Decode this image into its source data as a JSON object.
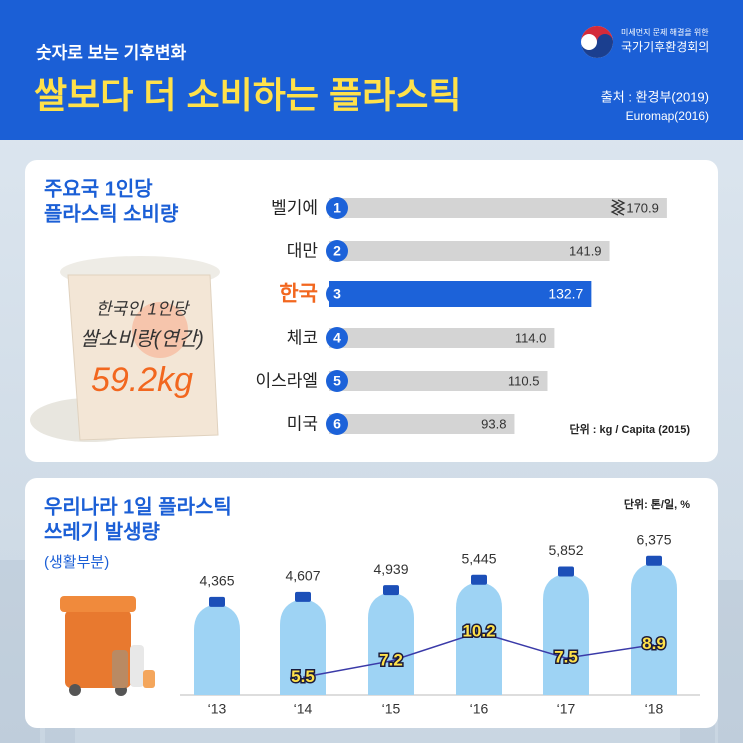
{
  "header": {
    "kicker": "숫자로 보는 기후변화",
    "title": "쌀보다 더 소비하는 플라스틱",
    "org_line1": "미세먼지 문제 해결을 위한",
    "org_line2": "국가기후환경회의",
    "source_line1": "출처 : 환경부(2019)",
    "source_line2": "Euromap(2016)"
  },
  "chart_data": [
    {
      "type": "hbar",
      "title": [
        "주요국 1인당",
        "플라스틱 소비량"
      ],
      "unit": "단위 : kg / Capita (2015)",
      "categories": [
        "벨기에",
        "대만",
        "한국",
        "체코",
        "이스라엘",
        "미국"
      ],
      "ranks": [
        1,
        2,
        3,
        4,
        5,
        6
      ],
      "values": [
        170.9,
        141.9,
        132.7,
        114.0,
        110.5,
        93.8
      ],
      "value_labels": [
        "170.9",
        "141.9",
        "132.7",
        "114.0",
        "110.5",
        "93.8"
      ],
      "colors": [
        "#d4d4d4",
        "#d4d4d4",
        "#1c62d9",
        "#d4d4d4",
        "#d4d4d4",
        "#d4d4d4"
      ],
      "highlight_label_color": "#f2671f",
      "xlim": [
        0,
        175
      ],
      "rice_label": [
        "한국인 1인당",
        "쌀소비량(연간)"
      ],
      "rice_value": "59.2kg"
    },
    {
      "type": "bottle",
      "title": [
        "우리나라 1일 플라스틱",
        "쓰레기 발생량"
      ],
      "subtitle": "(생활부분)",
      "unit": "단위: 톤/일, %",
      "categories": [
        "‘13",
        "‘14",
        "‘15",
        "‘16",
        "‘17",
        "‘18"
      ],
      "series": [
        {
          "values": [
            4365,
            4607,
            4939,
            5445,
            5852,
            6375
          ],
          "value_labels": [
            "4,365",
            "4,607",
            "4,939",
            "5,445",
            "5,852",
            "6,375"
          ],
          "color": "#9ed3f4"
        },
        {
          "values": [
            null,
            5.5,
            7.2,
            10.2,
            7.5,
            8.9
          ],
          "axis": "y2",
          "color": "#3a3aa8",
          "label_color": "#ffe14a"
        }
      ],
      "ylim": [
        0,
        7000
      ],
      "y2lim": [
        0,
        12
      ]
    }
  ]
}
